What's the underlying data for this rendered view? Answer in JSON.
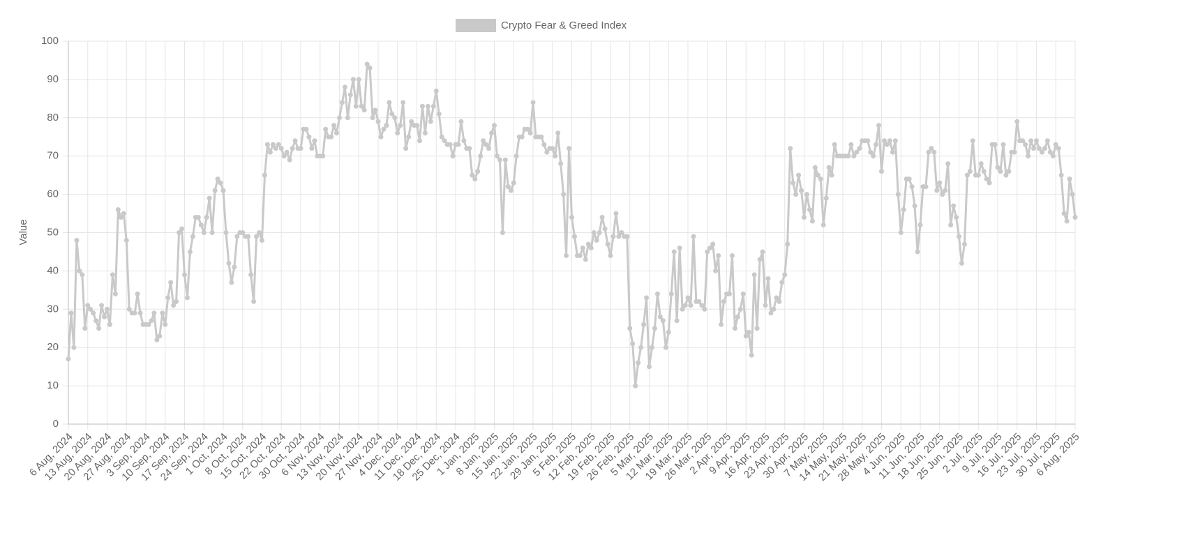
{
  "chart_data": {
    "type": "line",
    "y_label": "Value",
    "ylim": [
      0,
      100
    ],
    "yticks": [
      0,
      10,
      20,
      30,
      40,
      50,
      60,
      70,
      80,
      90,
      100
    ],
    "grid": true,
    "legend": "top",
    "categories": [
      "6 Aug, 2024",
      null,
      null,
      null,
      null,
      null,
      null,
      "13 Aug, 2024",
      null,
      null,
      null,
      null,
      null,
      null,
      "20 Aug, 2024",
      null,
      null,
      null,
      null,
      null,
      null,
      "27 Aug, 2024",
      null,
      null,
      null,
      null,
      null,
      null,
      "3 Sep, 2024",
      null,
      null,
      null,
      null,
      null,
      null,
      "10 Sep, 2024",
      null,
      null,
      null,
      null,
      null,
      null,
      "17 Sep, 2024",
      null,
      null,
      null,
      null,
      null,
      null,
      "24 Sep, 2024",
      null,
      null,
      null,
      null,
      null,
      null,
      "1 Oct, 2024",
      null,
      null,
      null,
      null,
      null,
      null,
      "8 Oct, 2024",
      null,
      null,
      null,
      null,
      null,
      null,
      "15 Oct, 2024",
      null,
      null,
      null,
      null,
      null,
      null,
      "22 Oct, 2024",
      null,
      null,
      null,
      null,
      null,
      null,
      "30 Oct, 2024",
      null,
      null,
      null,
      null,
      null,
      null,
      "6 Nov, 2024",
      null,
      null,
      null,
      null,
      null,
      null,
      "13 Nov, 2024",
      null,
      null,
      null,
      null,
      null,
      null,
      "20 Nov, 2024",
      null,
      null,
      null,
      null,
      null,
      null,
      "27 Nov, 2024",
      null,
      null,
      null,
      null,
      null,
      null,
      "4 Dec, 2024",
      null,
      null,
      null,
      null,
      null,
      null,
      "11 Dec, 2024",
      null,
      null,
      null,
      null,
      null,
      null,
      "18 Dec, 2024",
      null,
      null,
      null,
      null,
      null,
      null,
      "25 Dec, 2024",
      null,
      null,
      null,
      null,
      null,
      null,
      "1 Jan, 2025",
      null,
      null,
      null,
      null,
      null,
      null,
      "8 Jan, 2025",
      null,
      null,
      null,
      null,
      null,
      null,
      "15 Jan, 2025",
      null,
      null,
      null,
      null,
      null,
      null,
      "22 Jan, 2025",
      null,
      null,
      null,
      null,
      null,
      null,
      "29 Jan, 2025",
      null,
      null,
      null,
      null,
      null,
      null,
      "5 Feb, 2025",
      null,
      null,
      null,
      null,
      null,
      null,
      "12 Feb, 2025",
      null,
      null,
      null,
      null,
      null,
      null,
      "19 Feb, 2025",
      null,
      null,
      null,
      null,
      null,
      null,
      "26 Feb, 2025",
      null,
      null,
      null,
      null,
      null,
      null,
      "5 Mar, 2025",
      null,
      null,
      null,
      null,
      null,
      null,
      "12 Mar, 2025",
      null,
      null,
      null,
      null,
      null,
      null,
      "19 Mar, 2025",
      null,
      null,
      null,
      null,
      null,
      null,
      "26 Mar, 2025",
      null,
      null,
      null,
      null,
      null,
      null,
      "2 Apr, 2025",
      null,
      null,
      null,
      null,
      null,
      null,
      "9 Apr, 2025",
      null,
      null,
      null,
      null,
      null,
      null,
      "16 Apr, 2025",
      null,
      null,
      null,
      null,
      null,
      null,
      "23 Apr, 2025",
      null,
      null,
      null,
      null,
      null,
      null,
      "30 Apr, 2025",
      null,
      null,
      null,
      null,
      null,
      null,
      "7 May, 2025",
      null,
      null,
      null,
      null,
      null,
      null,
      "14 May, 2025",
      null,
      null,
      null,
      null,
      null,
      null,
      "21 May, 2025",
      null,
      null,
      null,
      null,
      null,
      null,
      "28 May, 2025",
      null,
      null,
      null,
      null,
      null,
      null,
      "4 Jun, 2025",
      null,
      null,
      null,
      null,
      null,
      null,
      "11 Jun, 2025",
      null,
      null,
      null,
      null,
      null,
      null,
      "18 Jun, 2025",
      null,
      null,
      null,
      null,
      null,
      null,
      "25 Jun, 2025",
      null,
      null,
      null,
      null,
      null,
      null,
      "2 Jul, 2025",
      null,
      null,
      null,
      null,
      null,
      null,
      "9 Jul, 2025",
      null,
      null,
      null,
      null,
      null,
      null,
      "16 Jul, 2025",
      null,
      null,
      null,
      null,
      null,
      null,
      "23 Jul, 2025",
      null,
      null,
      null,
      null,
      null,
      null,
      "30 Jul, 2025",
      null,
      null,
      null,
      null,
      null,
      null,
      "6 Aug, 2025"
    ],
    "series": [
      {
        "name": "Crypto Fear & Greed Index",
        "color": "#c9c9c9",
        "values": [
          17,
          29,
          20,
          48,
          40,
          39,
          25,
          31,
          30,
          29,
          27,
          25,
          31,
          28,
          30,
          26,
          39,
          34,
          56,
          54,
          55,
          48,
          30,
          29,
          29,
          34,
          29,
          26,
          26,
          26,
          27,
          29,
          22,
          23,
          29,
          26,
          33,
          37,
          31,
          32,
          50,
          51,
          39,
          33,
          45,
          49,
          54,
          54,
          52,
          50,
          54,
          59,
          50,
          61,
          64,
          63,
          61,
          50,
          42,
          37,
          41,
          49,
          50,
          50,
          49,
          49,
          39,
          32,
          49,
          50,
          48,
          65,
          73,
          71,
          73,
          72,
          73,
          72,
          70,
          71,
          69,
          72,
          74,
          72,
          72,
          77,
          77,
          75,
          72,
          74,
          70,
          70,
          70,
          77,
          75,
          75,
          78,
          76,
          80,
          84,
          88,
          80,
          86,
          90,
          83,
          90,
          83,
          82,
          94,
          93,
          80,
          82,
          79,
          75,
          77,
          78,
          84,
          81,
          80,
          76,
          78,
          84,
          72,
          75,
          79,
          78,
          78,
          74,
          83,
          76,
          83,
          79,
          83,
          87,
          81,
          75,
          74,
          73,
          73,
          70,
          73,
          73,
          79,
          74,
          72,
          72,
          65,
          64,
          66,
          70,
          74,
          73,
          72,
          76,
          78,
          70,
          69,
          50,
          69,
          62,
          61,
          63,
          70,
          75,
          75,
          77,
          77,
          76,
          84,
          75,
          75,
          75,
          73,
          71,
          72,
          72,
          70,
          76,
          68,
          60,
          44,
          72,
          54,
          49,
          44,
          44,
          46,
          43,
          47,
          46,
          50,
          48,
          50,
          54,
          51,
          47,
          44,
          49,
          55,
          49,
          50,
          49,
          49,
          25,
          21,
          10,
          16,
          20,
          26,
          33,
          15,
          20,
          25,
          34,
          28,
          27,
          20,
          24,
          34,
          45,
          27,
          46,
          30,
          31,
          33,
          31,
          49,
          32,
          32,
          31,
          30,
          45,
          46,
          47,
          40,
          44,
          26,
          32,
          34,
          34,
          44,
          25,
          28,
          30,
          34,
          23,
          24,
          18,
          39,
          25,
          43,
          45,
          31,
          38,
          29,
          30,
          33,
          32,
          37,
          39,
          47,
          72,
          63,
          60,
          65,
          61,
          54,
          60,
          56,
          53,
          67,
          65,
          64,
          52,
          59,
          67,
          65,
          73,
          70,
          70,
          70,
          70,
          70,
          73,
          70,
          71,
          72,
          74,
          74,
          74,
          71,
          70,
          73,
          78,
          66,
          74,
          73,
          74,
          71,
          74,
          60,
          50,
          56,
          64,
          64,
          62,
          57,
          45,
          52,
          62,
          62,
          71,
          72,
          71,
          61,
          63,
          60,
          61,
          68,
          52,
          57,
          54,
          49,
          42,
          47,
          65,
          66,
          74,
          65,
          65,
          68,
          66,
          64,
          63,
          73,
          73,
          67,
          66,
          73,
          65,
          66,
          71,
          71,
          79,
          74,
          74,
          73,
          70,
          74,
          72,
          74,
          72,
          71,
          72,
          74,
          71,
          70,
          73,
          72,
          65,
          55,
          53,
          64,
          60,
          54
        ]
      }
    ]
  }
}
